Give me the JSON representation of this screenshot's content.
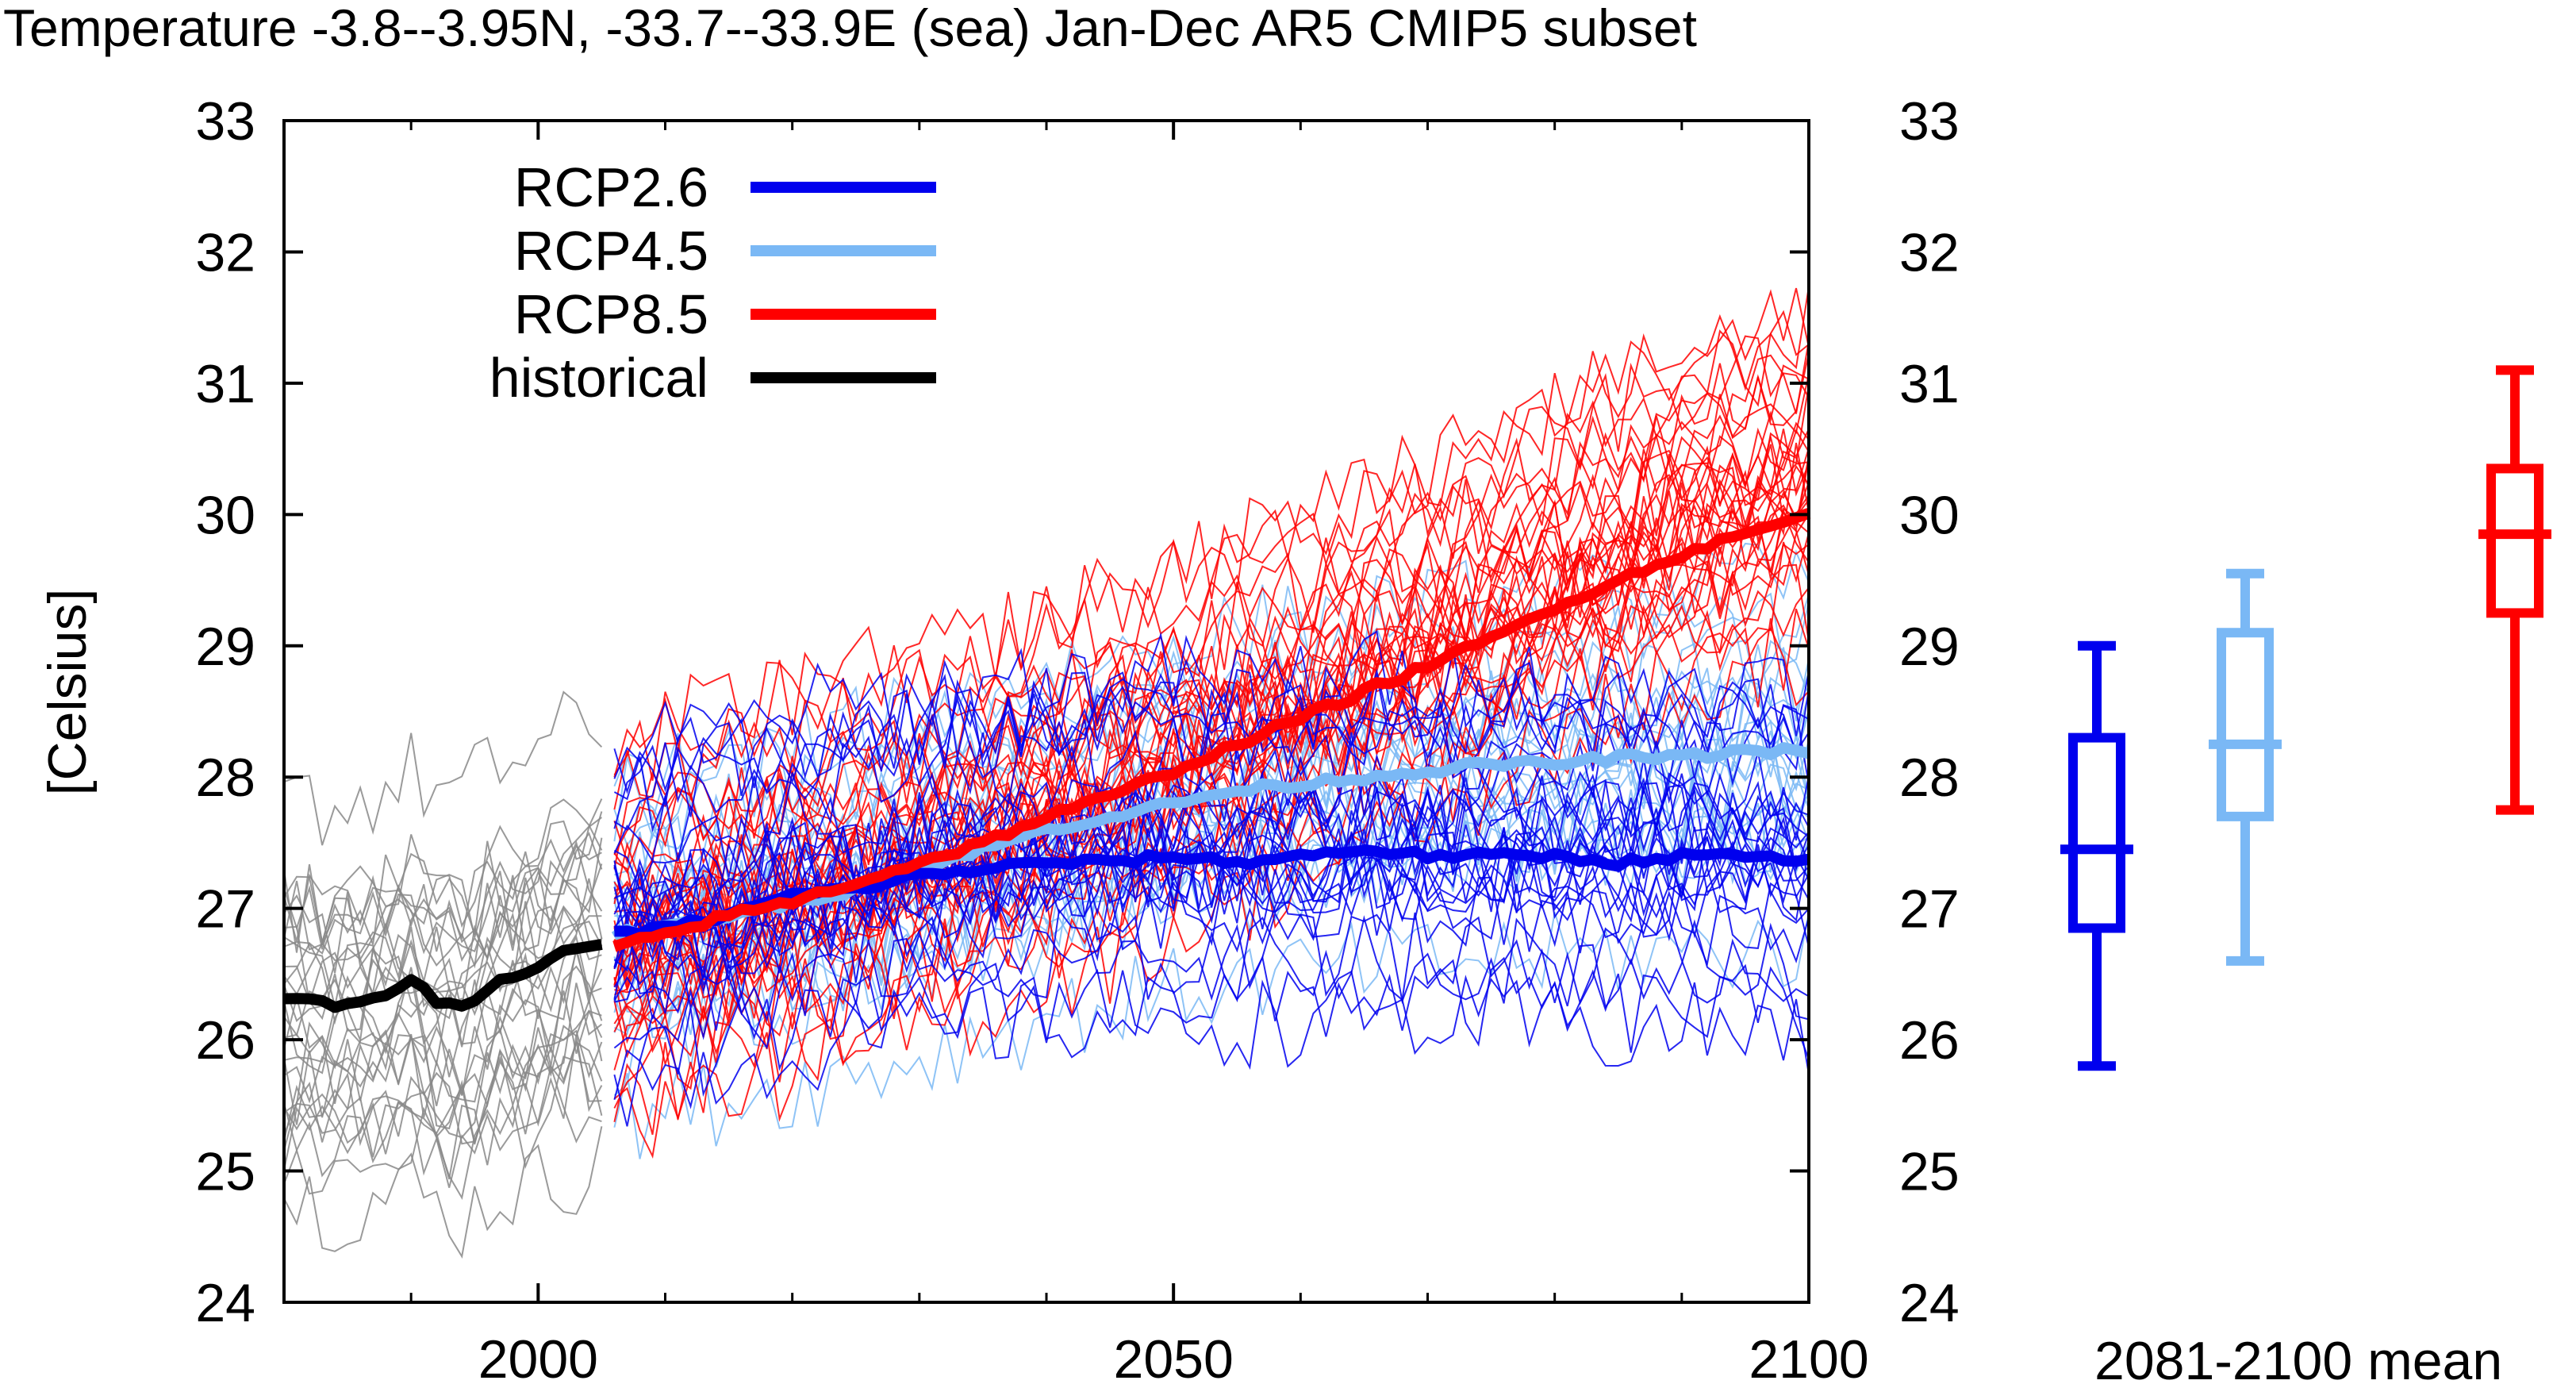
{
  "chart_data": {
    "type": "line",
    "title": "Temperature -3.8--3.95N, -33.7--33.9E (sea) Jan-Dec AR5 CMIP5 subset",
    "ylabel": "[Celsius]",
    "xlabel": "",
    "xlim": [
      1980,
      2100
    ],
    "ylim": [
      24,
      33
    ],
    "x_ticks": [
      "2000",
      "2050",
      "2100"
    ],
    "y_ticks": [
      "24",
      "25",
      "26",
      "27",
      "28",
      "29",
      "30",
      "31",
      "32",
      "33"
    ],
    "right_y_ticks": [
      "24",
      "25",
      "26",
      "27",
      "28",
      "29",
      "30",
      "31",
      "32",
      "33"
    ],
    "grid": false,
    "legend_position": "top-left",
    "colors": {
      "rcp26": "#0000ee",
      "rcp45": "#7ab8f5",
      "rcp85": "#ff0000",
      "historical": "#000000",
      "hist_members": "#888888"
    },
    "series": [
      {
        "name": "RCP2.6",
        "key": "rcp26",
        "x": [
          2006,
          2010,
          2015,
          2020,
          2025,
          2030,
          2035,
          2040,
          2045,
          2050,
          2055,
          2060,
          2065,
          2070,
          2075,
          2080,
          2085,
          2090,
          2095,
          2100
        ],
        "values": [
          26.8,
          26.85,
          26.95,
          27.1,
          27.15,
          27.25,
          27.3,
          27.35,
          27.35,
          27.4,
          27.35,
          27.4,
          27.45,
          27.4,
          27.4,
          27.4,
          27.35,
          27.4,
          27.4,
          27.35
        ]
      },
      {
        "name": "RCP4.5",
        "key": "rcp45",
        "x": [
          2006,
          2010,
          2015,
          2020,
          2025,
          2030,
          2035,
          2040,
          2045,
          2050,
          2055,
          2060,
          2065,
          2070,
          2075,
          2080,
          2085,
          2090,
          2095,
          2100
        ],
        "values": [
          26.8,
          26.85,
          26.95,
          27.05,
          27.15,
          27.3,
          27.45,
          27.6,
          27.7,
          27.8,
          27.9,
          27.95,
          28.0,
          28.05,
          28.1,
          28.1,
          28.15,
          28.15,
          28.2,
          28.2
        ]
      },
      {
        "name": "RCP8.5",
        "key": "rcp85",
        "x": [
          2006,
          2010,
          2015,
          2020,
          2025,
          2030,
          2035,
          2040,
          2045,
          2050,
          2055,
          2060,
          2065,
          2070,
          2075,
          2080,
          2085,
          2090,
          2095,
          2100
        ],
        "values": [
          26.7,
          26.8,
          26.95,
          27.05,
          27.2,
          27.35,
          27.5,
          27.7,
          27.85,
          28.05,
          28.25,
          28.45,
          28.65,
          28.85,
          29.05,
          29.3,
          29.5,
          29.7,
          29.85,
          30.0
        ]
      },
      {
        "name": "historical",
        "key": "historical",
        "x": [
          1980,
          1982,
          1984,
          1986,
          1988,
          1990,
          1992,
          1994,
          1996,
          1998,
          2000,
          2002,
          2004,
          2005
        ],
        "values": [
          26.3,
          26.3,
          26.25,
          26.3,
          26.35,
          26.45,
          26.3,
          26.25,
          26.4,
          26.5,
          26.55,
          26.65,
          26.7,
          26.75
        ]
      }
    ],
    "boxplots": {
      "label": "2081-2100 mean",
      "boxes": [
        {
          "key": "rcp26",
          "min": 25.8,
          "q1": 26.85,
          "median": 27.45,
          "q3": 28.3,
          "max": 29.0
        },
        {
          "key": "rcp45",
          "min": 26.6,
          "q1": 27.7,
          "median": 28.25,
          "q3": 29.1,
          "max": 29.55
        },
        {
          "key": "rcp85",
          "min": 27.75,
          "q1": 29.25,
          "median": 29.85,
          "q3": 30.35,
          "max": 31.1
        }
      ]
    }
  }
}
